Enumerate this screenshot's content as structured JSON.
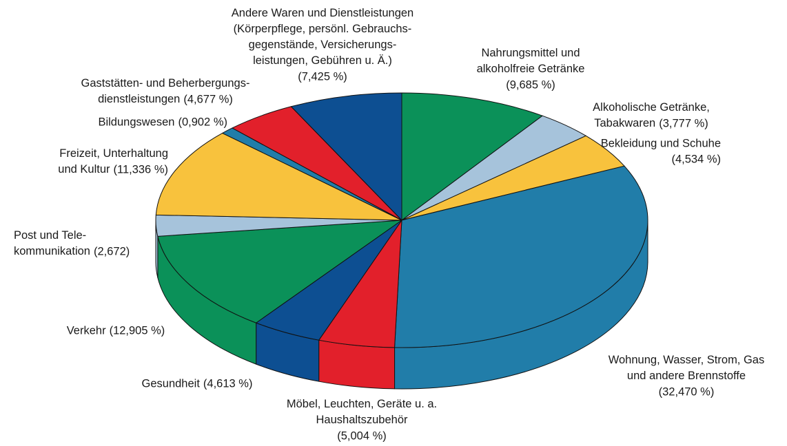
{
  "chart_data": {
    "type": "pie",
    "categories": [
      "Nahrungsmittel und\nalkoholfreie Getränke",
      "Alkoholische Getränke,\nTabakwaren",
      "Bekleidung und Schuhe",
      "Wohnung, Wasser, Strom, Gas\nund andere Brennstoffe",
      "Möbel, Leuchten, Geräte u. a.\nHaushaltszubehör",
      "Gesundheit",
      "Verkehr",
      "Post und Tele-\nkommunikation",
      "Freizeit, Unterhaltung\nund Kultur",
      "Bildungswesen",
      "Gaststätten- und Beherbergungs-\ndienstleistungen",
      "Andere Waren und Dienstleistungen\n(Körperpflege, persönl. Gebrauchs-\ngegenstände, Versicherungs-\nleistungen, Gebühren u. Ä.)"
    ],
    "values": [
      9.685,
      3.777,
      4.534,
      32.47,
      5.004,
      4.613,
      12.905,
      2.672,
      11.336,
      0.902,
      4.677,
      7.425
    ],
    "value_labels": [
      "(9,685 %)",
      "(3,777 %)",
      "(4,534 %)",
      "(32,470 %)",
      "(5,004 %)",
      "(4,613 %)",
      "(12,905 %)",
      "(2,672)",
      "(11,336 %)",
      "(0,902 %)",
      "(4,677 %)",
      "(7,425 %)"
    ],
    "colors": [
      "#0b9159",
      "#a6c3db",
      "#f8c23d",
      "#217da9",
      "#e2202b",
      "#0d4f92",
      "#0b9159",
      "#a6c3db",
      "#f8c23d",
      "#217da9",
      "#e2202b",
      "#0d4f92"
    ]
  }
}
